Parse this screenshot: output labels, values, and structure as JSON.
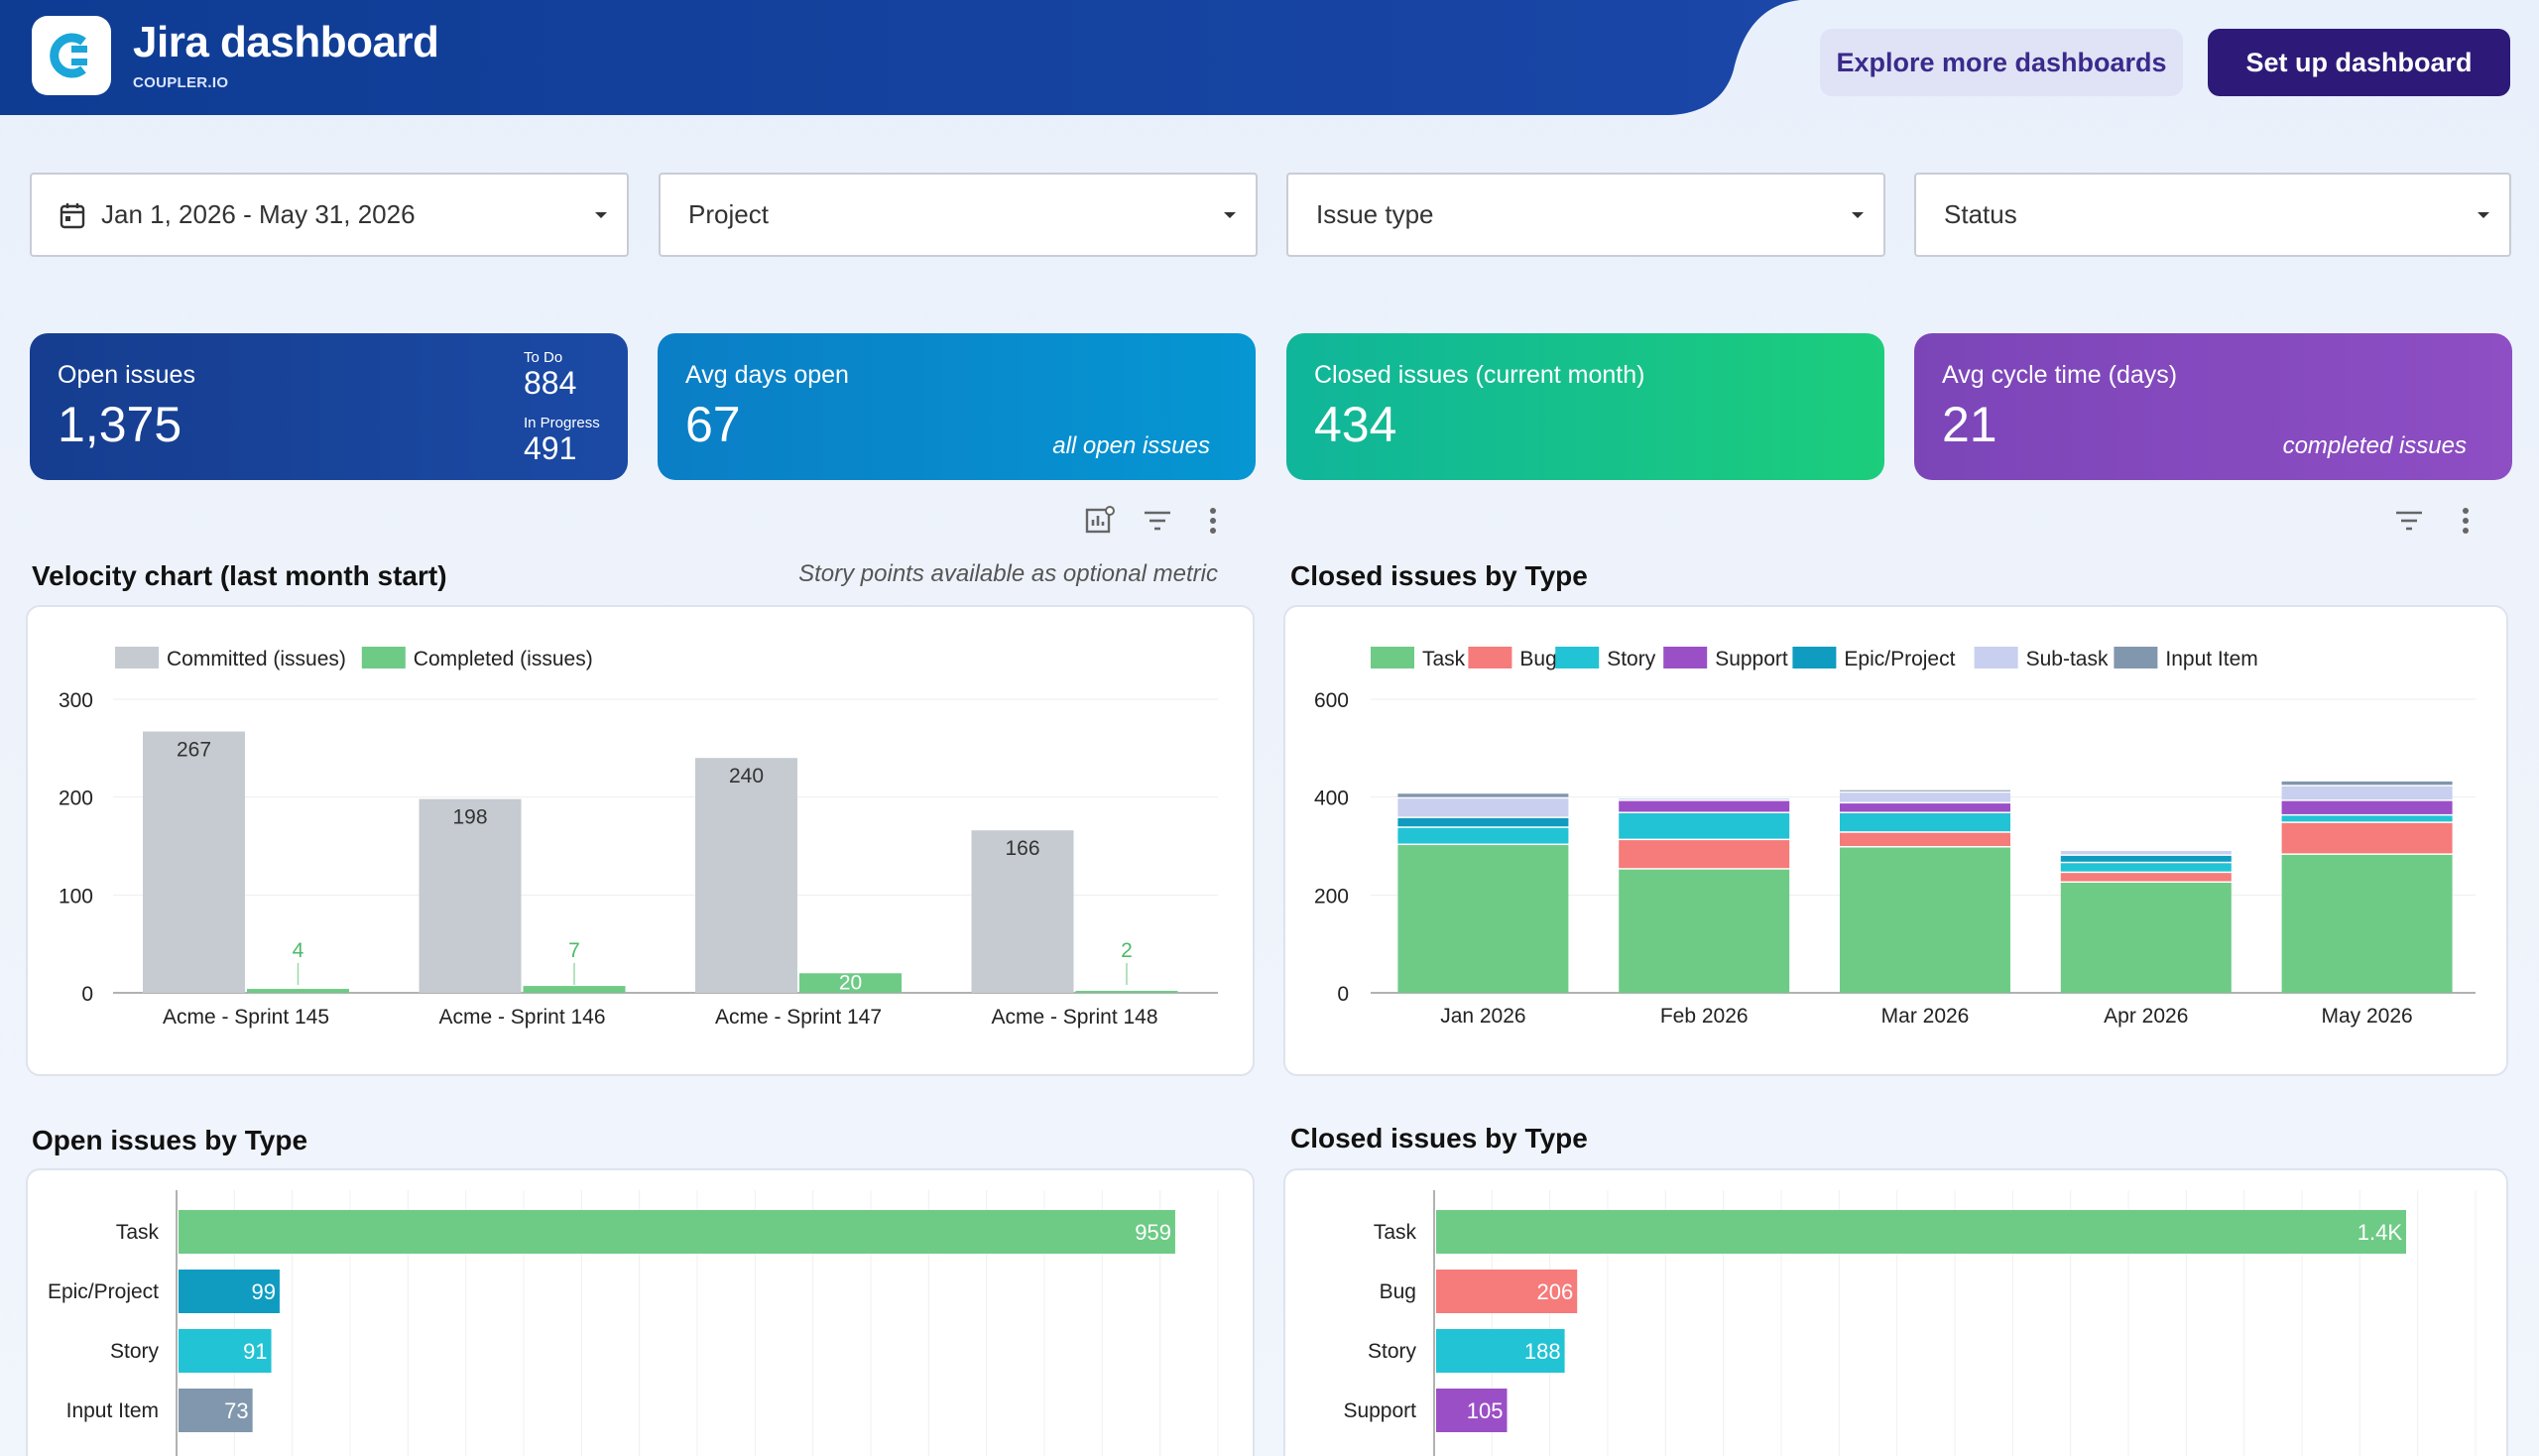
{
  "header": {
    "title": "Jira dashboard",
    "subtitle": "COUPLER.IO",
    "explore_label": "Explore more dashboards",
    "setup_label": "Set up dashboard"
  },
  "filters": {
    "date_range": "Jan 1, 2026 - May 31, 2026",
    "project": "Project",
    "issue_type": "Issue type",
    "status": "Status"
  },
  "kpis": {
    "open": {
      "label": "Open issues",
      "value": "1,375",
      "todo_label": "To Do",
      "todo_value": "884",
      "inprogress_label": "In Progress",
      "inprogress_value": "491"
    },
    "avg_days": {
      "label": "Avg days open",
      "value": "67",
      "note": "all open issues"
    },
    "closed": {
      "label": "Closed issues (current month)",
      "value": "434"
    },
    "cycle": {
      "label": "Avg cycle time (days)",
      "value": "21",
      "note": "completed issues"
    }
  },
  "sections": {
    "velocity_title": "Velocity chart (last month start)",
    "velocity_note": "Story points available as optional metric",
    "closed_type_title": "Closed issues by Type",
    "open_type_title": "Open issues by Type",
    "closed_type_title2": "Closed issues by Type"
  },
  "colors": {
    "committed": "#c5cbd1",
    "completed": "#6ecb86",
    "task": "#6ecb86",
    "bug": "#f67b7b",
    "story": "#22c3d4",
    "support": "#9b4fc7",
    "epic": "#0f9cc0",
    "subtask": "#c8cfef",
    "input": "#8097ad"
  },
  "chart_data": [
    {
      "type": "bar",
      "title": "Velocity chart (last month start)",
      "categories": [
        "Acme - Sprint 145",
        "Acme - Sprint 146",
        "Acme - Sprint 147",
        "Acme - Sprint 148"
      ],
      "series": [
        {
          "name": "Committed (issues)",
          "values": [
            267,
            198,
            240,
            166
          ]
        },
        {
          "name": "Completed (issues)",
          "values": [
            4,
            7,
            20,
            2
          ]
        }
      ],
      "ylim": [
        0,
        300
      ],
      "yticks": [
        "0",
        "100",
        "200",
        "300"
      ],
      "legend": "top-left"
    },
    {
      "type": "bar",
      "stacked": true,
      "title": "Closed issues by Type",
      "categories": [
        "Jan 2026",
        "Feb 2026",
        "Mar 2026",
        "Apr 2026",
        "May 2026"
      ],
      "series": [
        {
          "name": "Task",
          "values": [
            305,
            255,
            300,
            228,
            285
          ]
        },
        {
          "name": "Bug",
          "values": [
            0,
            60,
            30,
            20,
            65
          ]
        },
        {
          "name": "Story",
          "values": [
            35,
            55,
            40,
            20,
            15
          ]
        },
        {
          "name": "Support",
          "values": [
            0,
            25,
            20,
            0,
            30
          ]
        },
        {
          "name": "Epic/Project",
          "values": [
            20,
            0,
            0,
            15,
            0
          ]
        },
        {
          "name": "Sub-task",
          "values": [
            40,
            5,
            22,
            10,
            30
          ]
        },
        {
          "name": "Input Item",
          "values": [
            10,
            0,
            5,
            0,
            10
          ]
        }
      ],
      "ylim": [
        0,
        600
      ],
      "yticks": [
        "0",
        "200",
        "400",
        "600"
      ],
      "legend": "top"
    },
    {
      "type": "bar",
      "orientation": "horizontal",
      "title": "Open issues by Type",
      "categories": [
        "Task",
        "Epic/Project",
        "Story",
        "Input Item"
      ],
      "values": [
        959,
        99,
        91,
        73
      ],
      "labels": [
        "959",
        "99",
        "91",
        "73"
      ]
    },
    {
      "type": "bar",
      "orientation": "horizontal",
      "title": "Closed issues by Type",
      "categories": [
        "Task",
        "Bug",
        "Story",
        "Support"
      ],
      "values": [
        1400,
        206,
        188,
        105
      ],
      "labels": [
        "1.4K",
        "206",
        "188",
        "105"
      ]
    }
  ]
}
